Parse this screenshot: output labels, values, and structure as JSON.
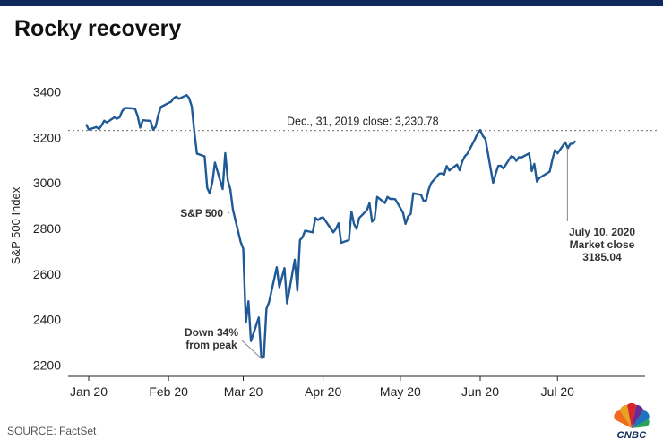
{
  "title": "Rocky recovery",
  "source": "SOURCE: FactSet",
  "logo": {
    "text": "CNBC",
    "icon": "peacock-icon"
  },
  "colors": {
    "line": "#1f5a96",
    "brand": "#0e2a5c",
    "reference": "#888888",
    "axis": "#222222",
    "annotation": "#333333"
  },
  "chart_data": {
    "type": "line",
    "title": "Rocky recovery",
    "ylabel": "S&P 500 Index",
    "xlabel": "",
    "ylim": [
      2150,
      3450
    ],
    "xlim": [
      -5,
      219
    ],
    "grid": false,
    "yticks": [
      2200,
      2400,
      2600,
      2800,
      3000,
      3200,
      3400
    ],
    "xticks": [
      {
        "label": "Jan 20",
        "x": 3
      },
      {
        "label": "Feb 20",
        "x": 34
      },
      {
        "label": "Mar 20",
        "x": 63
      },
      {
        "label": "Apr 20",
        "x": 94
      },
      {
        "label": "May 20",
        "x": 124
      },
      {
        "label": "Jun 20",
        "x": 155
      },
      {
        "label": "Jul 20",
        "x": 185
      }
    ],
    "reference_line": {
      "y": 3230.78,
      "label": "Dec., 31, 2019 close:  3,230.78"
    },
    "series": [
      {
        "name": "S&P 500",
        "x": [
          2,
          3,
          6,
          7,
          8,
          9,
          10,
          13,
          14,
          15,
          16,
          17,
          20,
          21,
          22,
          23,
          24,
          27,
          28,
          29,
          30,
          31,
          34,
          35,
          36,
          37,
          38,
          41,
          42,
          43,
          44,
          45,
          48,
          49,
          50,
          51,
          52,
          55,
          56,
          57,
          58,
          59,
          62,
          63,
          64,
          65,
          66,
          69,
          70,
          71,
          72,
          73,
          76,
          77,
          78,
          79,
          80,
          83,
          84,
          85,
          86,
          87,
          90,
          91,
          92,
          93,
          94,
          98,
          99,
          100,
          101,
          104,
          105,
          106,
          107,
          108,
          111,
          112,
          113,
          114,
          115,
          118,
          119,
          120,
          121,
          122,
          125,
          126,
          127,
          128,
          129,
          132,
          133,
          134,
          135,
          136,
          139,
          140,
          141,
          142,
          143,
          146,
          147,
          148,
          149,
          150,
          153,
          154,
          155,
          156,
          157,
          160,
          161,
          162,
          163,
          164,
          167,
          168,
          169,
          170,
          171,
          174,
          175,
          176,
          177,
          178,
          182,
          183,
          184,
          185,
          188,
          189,
          190,
          191,
          192
        ],
        "y": [
          3258,
          3235,
          3246,
          3237,
          3253,
          3274,
          3266,
          3289,
          3283,
          3289,
          3316,
          3330,
          3328,
          3325,
          3295,
          3243,
          3276,
          3273,
          3234,
          3248,
          3298,
          3334,
          3352,
          3357,
          3373,
          3380,
          3370,
          3386,
          3373,
          3337,
          3225,
          3129,
          3117,
          2979,
          2954,
          3003,
          3090,
          2973,
          3131,
          3011,
          2972,
          2882,
          2741,
          2711,
          2386,
          2480,
          2305,
          2409,
          2238,
          2237,
          2447,
          2476,
          2630,
          2542,
          2584,
          2626,
          2471,
          2663,
          2527,
          2749,
          2761,
          2790,
          2783,
          2847,
          2837,
          2846,
          2849,
          2783,
          2799,
          2823,
          2737,
          2749,
          2874,
          2820,
          2798,
          2846,
          2880,
          2912,
          2830,
          2843,
          2939,
          2912,
          2939,
          2930,
          2930,
          2929,
          2870,
          2820,
          2853,
          2864,
          2955,
          2948,
          2921,
          2923,
          2972,
          3000,
          3040,
          3042,
          3037,
          3075,
          3055,
          3081,
          3056,
          3094,
          3117,
          3128,
          3194,
          3219,
          3233,
          3207,
          3193,
          3001,
          3041,
          3075,
          3076,
          3064,
          3117,
          3114,
          3097,
          3113,
          3112,
          3130,
          3052,
          3084,
          3006,
          3022,
          3050,
          3102,
          3145,
          3130,
          3179,
          3153,
          3172,
          3173,
          3185
        ]
      }
    ],
    "annotations": [
      {
        "label": "S&P 500",
        "bold": true
      },
      {
        "label": "Down 34%",
        "label2": "from peak",
        "bold": true
      },
      {
        "label": "July 10, 2020",
        "label2": "Market close",
        "label3": "3185.04",
        "bold": true
      }
    ]
  }
}
